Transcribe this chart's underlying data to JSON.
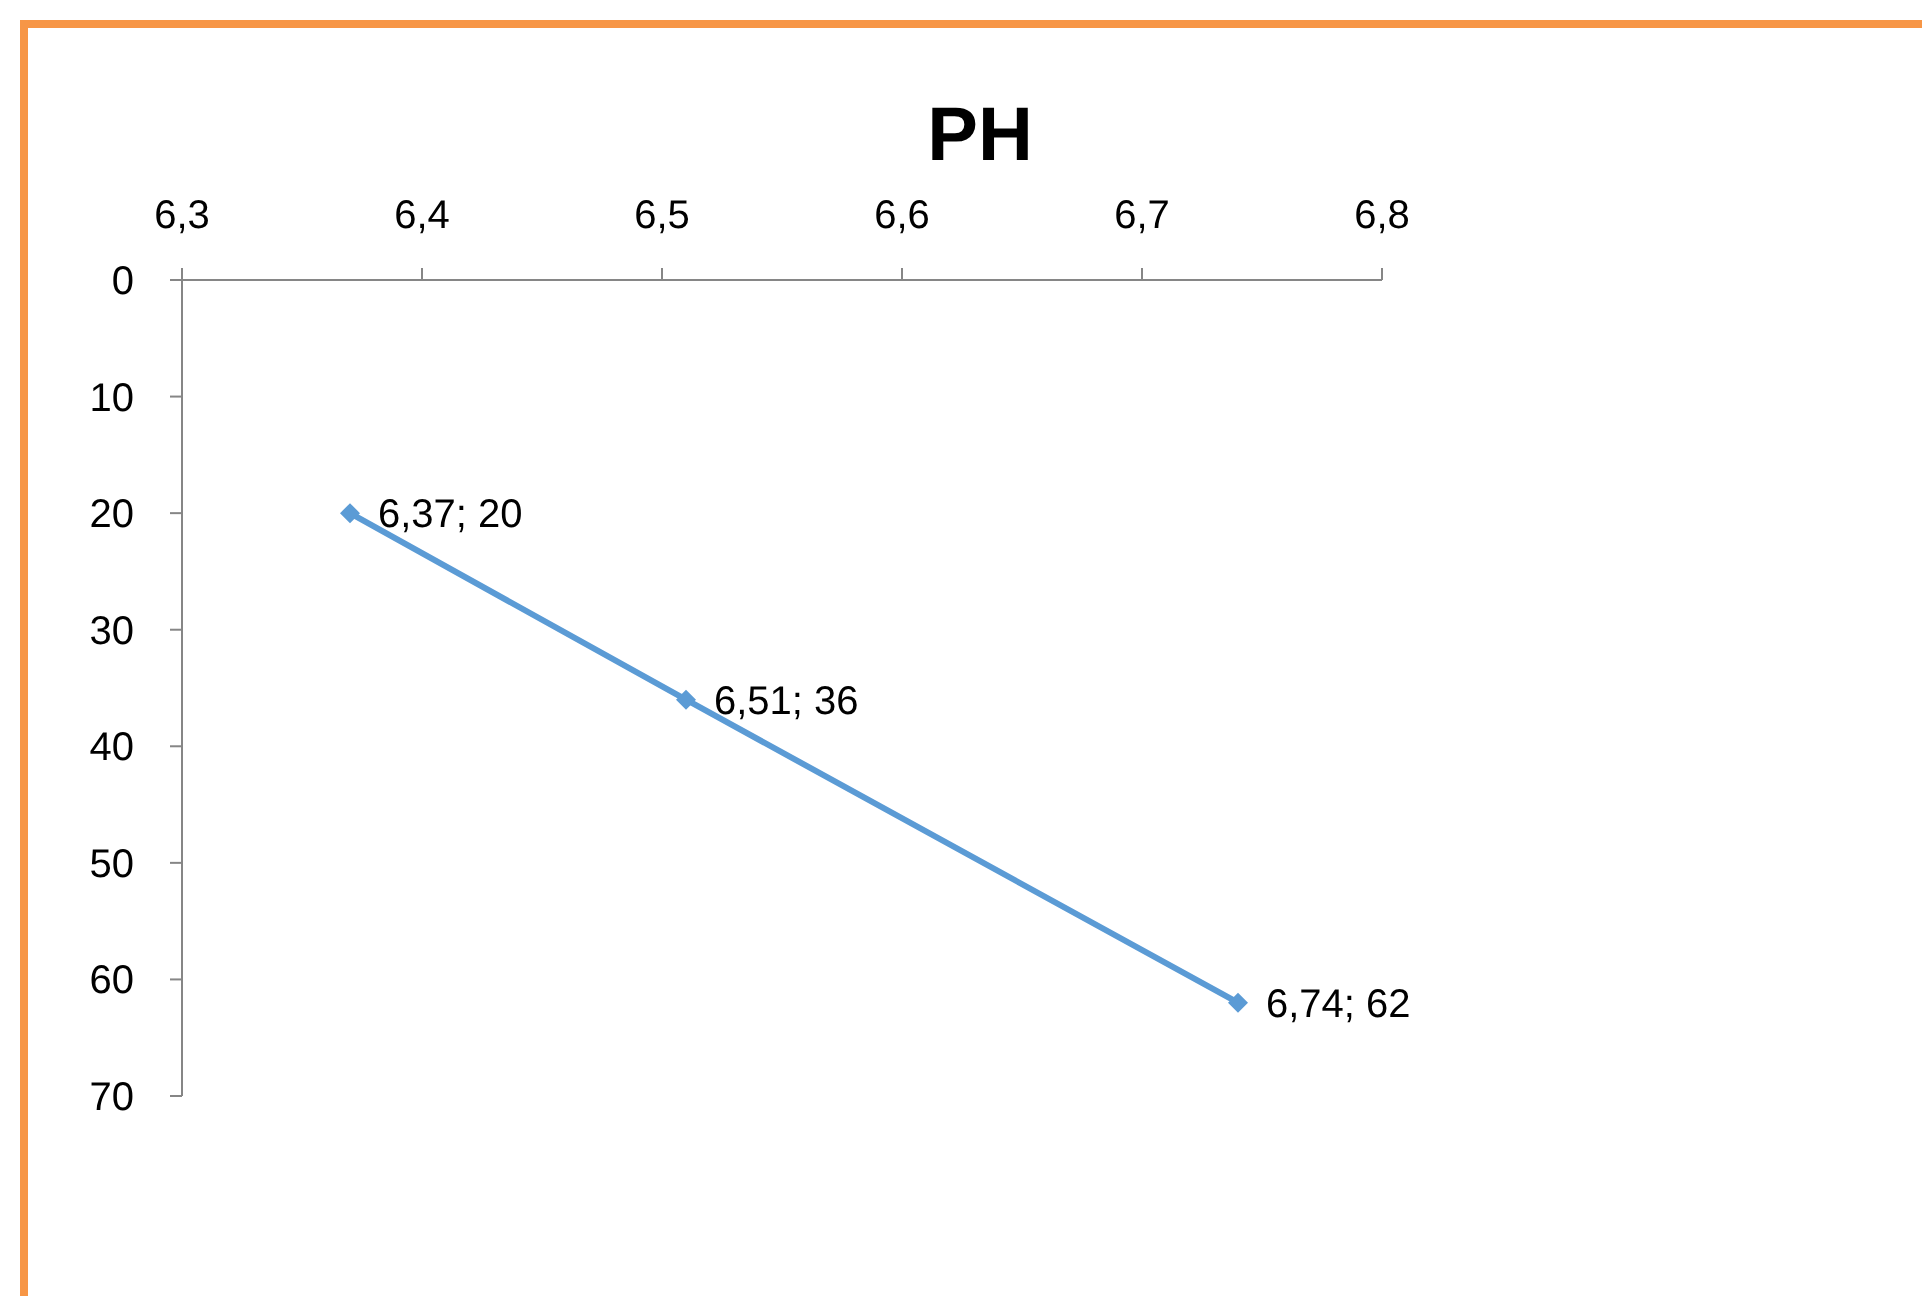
{
  "chart_data": {
    "type": "line",
    "title": "PH",
    "x": [
      6.37,
      6.51,
      6.74
    ],
    "series": [
      {
        "color": "#5b9bd5",
        "values": [
          20,
          36,
          62
        ],
        "value_labels": [
          "6,37; 20",
          "6,51; 36",
          "6,74; 62"
        ]
      }
    ],
    "xlim": [
      6.3,
      6.8
    ],
    "xticks": [
      {
        "value": 6.3,
        "label": "6,3"
      },
      {
        "value": 6.4,
        "label": "6,4"
      },
      {
        "value": 6.5,
        "label": "6,5"
      },
      {
        "value": 6.6,
        "label": "6,6"
      },
      {
        "value": 6.7,
        "label": "6,7"
      },
      {
        "value": 6.8,
        "label": "6,8"
      }
    ],
    "ylim": [
      70,
      0
    ],
    "yticks": [
      0,
      10,
      20,
      30,
      40,
      50,
      60,
      70
    ],
    "marker": "diamond",
    "line_style": "solid",
    "grid": false
  }
}
